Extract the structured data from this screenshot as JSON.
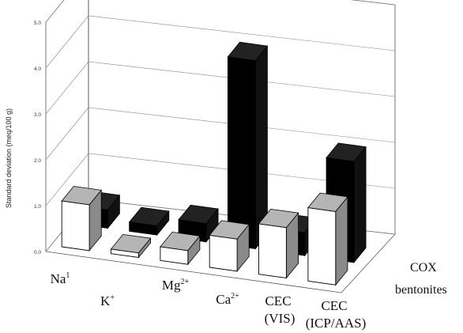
{
  "chart_data": {
    "type": "bar",
    "ylabel": "Standard deviation (meq/100 g)",
    "yticks": [
      "0.0",
      "1.0",
      "2.0",
      "3.0",
      "4.0",
      "5.0"
    ],
    "ylim": [
      0,
      5
    ],
    "categories": [
      {
        "main": "Na",
        "sup": "1",
        "line2": ""
      },
      {
        "main": "K",
        "sup": "+",
        "line2": ""
      },
      {
        "main": "Mg",
        "sup": "2+",
        "line2": ""
      },
      {
        "main": "Ca",
        "sup": "2+",
        "line2": ""
      },
      {
        "main": "CEC",
        "sup": "",
        "line2": "(VIS)"
      },
      {
        "main": "CEC",
        "sup": "",
        "line2": "(ICP/AAS)"
      }
    ],
    "series": [
      {
        "name": "bentonites",
        "color": "#ffffff",
        "values": [
          1.0,
          0.1,
          0.3,
          0.7,
          1.1,
          1.6
        ]
      },
      {
        "name": "COX",
        "color": "#000000",
        "values": [
          0.4,
          0.2,
          0.4,
          4.1,
          0.5,
          2.2
        ]
      }
    ]
  }
}
